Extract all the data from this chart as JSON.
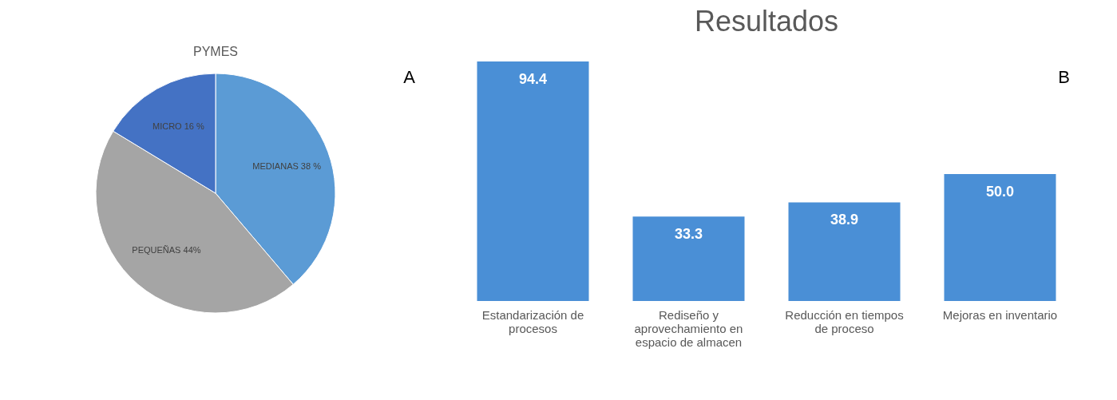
{
  "chart_data": [
    {
      "type": "pie",
      "title": "PYMES",
      "categories": [
        "MEDIANAS",
        "PEQUEÑAS",
        "MICRO"
      ],
      "values": [
        38,
        44,
        16
      ],
      "value_labels": [
        "38 %",
        "44%",
        "16 %"
      ],
      "colors": [
        "#5b9bd5",
        "#a5a5a5",
        "#4472c4"
      ],
      "annotations": [
        "A"
      ]
    },
    {
      "type": "bar",
      "title": "Resultados",
      "categories": [
        "Estandarización  de procesos",
        "Rediseño y aprovechamiento en espacio de almacen",
        "Reducción en tiempos de proceso",
        "Mejoras en inventario"
      ],
      "values": [
        94.4,
        33.3,
        38.9,
        50.0
      ],
      "value_labels": [
        "94.4",
        "33.3",
        "38.9",
        "50.0"
      ],
      "color": "#4a8fd6",
      "annotations": [
        "B"
      ]
    }
  ]
}
